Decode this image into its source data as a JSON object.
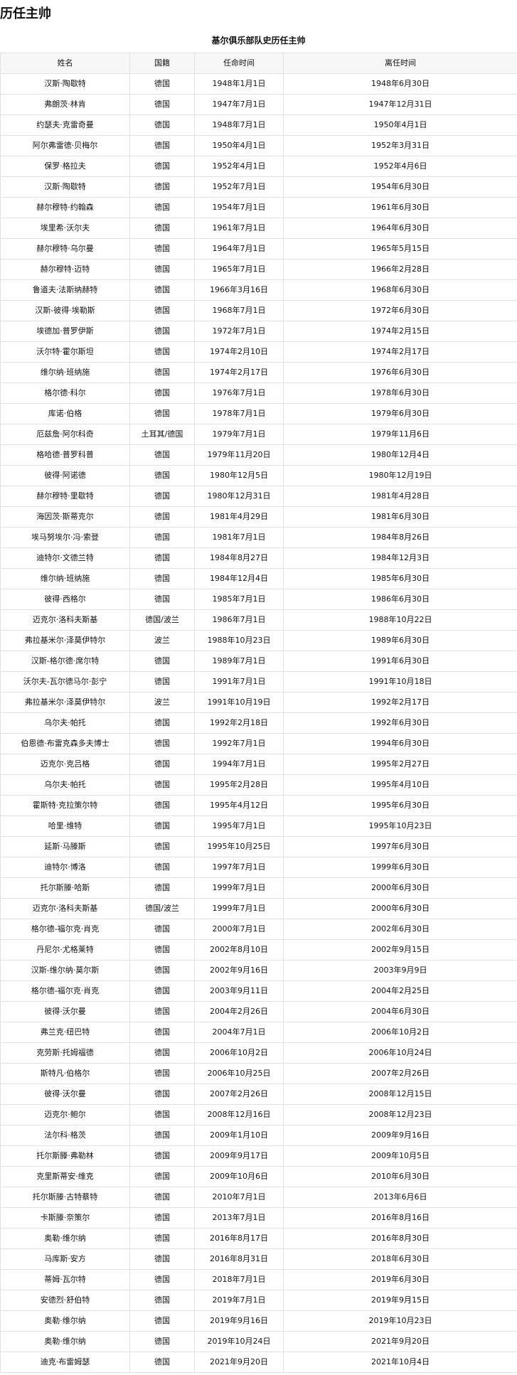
{
  "page_title": "历任主帅",
  "table": {
    "caption": "基尔俱乐部队史历任主帅",
    "headers": [
      "姓名",
      "国籍",
      "任命时间",
      "离任时间"
    ],
    "rows": [
      [
        "汉斯·陶歇特",
        "德国",
        "1948年1月1日",
        "1948年6月30日"
      ],
      [
        "弗朗茨·林肯",
        "德国",
        "1947年7月1日",
        "1947年12月31日"
      ],
      [
        "约瑟夫·克雷奇曼",
        "德国",
        "1948年7月1日",
        "1950年4月1日"
      ],
      [
        "阿尔弗雷德·贝梅尔",
        "德国",
        "1950年4月1日",
        "1952年3月31日"
      ],
      [
        "保罗·格拉夫",
        "德国",
        "1952年4月1日",
        "1952年4月6日"
      ],
      [
        "汉斯·陶歇特",
        "德国",
        "1952年7月1日",
        "1954年6月30日"
      ],
      [
        "赫尔穆特·约翰森",
        "德国",
        "1954年7月1日",
        "1961年6月30日"
      ],
      [
        "埃里希·沃尔夫",
        "德国",
        "1961年7月1日",
        "1964年6月30日"
      ],
      [
        "赫尔穆特·乌尔曼",
        "德国",
        "1964年7月1日",
        "1965年5月15日"
      ],
      [
        "赫尔穆特·迈特",
        "德国",
        "1965年7月1日",
        "1966年2月28日"
      ],
      [
        "鲁道夫·法斯纳赫特",
        "德国",
        "1966年3月16日",
        "1968年6月30日"
      ],
      [
        "汉斯-彼得·埃勒斯",
        "德国",
        "1968年7月1日",
        "1972年6月30日"
      ],
      [
        "埃德加·普罗伊斯",
        "德国",
        "1972年7月1日",
        "1974年2月15日"
      ],
      [
        "沃尔特·霍尔斯坦",
        "德国",
        "1974年2月10日",
        "1974年2月17日"
      ],
      [
        "维尔纳·班纳施",
        "德国",
        "1974年2月17日",
        "1976年6月30日"
      ],
      [
        "格尔德·科尔",
        "德国",
        "1976年7月1日",
        "1978年6月30日"
      ],
      [
        "库诺·伯格",
        "德国",
        "1978年7月1日",
        "1979年6月30日"
      ],
      [
        "厄兹詹·阿尔科奇",
        "土耳其/德国",
        "1979年7月1日",
        "1979年11月6日"
      ],
      [
        "格哈德·普罗科普",
        "德国",
        "1979年11月20日",
        "1980年12月4日"
      ],
      [
        "彼得·阿诺德",
        "德国",
        "1980年12月5日",
        "1980年12月19日"
      ],
      [
        "赫尔穆特·里歇特",
        "德国",
        "1980年12月31日",
        "1981年4月28日"
      ],
      [
        "海因茨·斯蒂克尔",
        "德国",
        "1981年4月29日",
        "1981年6月30日"
      ],
      [
        "埃马努埃尔·冯·索登",
        "德国",
        "1981年7月1日",
        "1984年8月26日"
      ],
      [
        "迪特尔·文德兰特",
        "德国",
        "1984年8月27日",
        "1984年12月3日"
      ],
      [
        "维尔纳·班纳施",
        "德国",
        "1984年12月4日",
        "1985年6月30日"
      ],
      [
        "彼得·西格尔",
        "德国",
        "1985年7月1日",
        "1986年6月30日"
      ],
      [
        "迈克尔·洛科夫斯基",
        "德国/波兰",
        "1986年7月1日",
        "1988年10月22日"
      ],
      [
        "弗拉基米尔·泽莫伊特尔",
        "波兰",
        "1988年10月23日",
        "1989年6月30日"
      ],
      [
        "汉斯-格尔德·席尔特",
        "德国",
        "1989年7月1日",
        "1991年6月30日"
      ],
      [
        "沃尔夫-瓦尔德马尔·彭宁",
        "德国",
        "1991年7月1日",
        "1991年10月18日"
      ],
      [
        "弗拉基米尔·泽莫伊特尔",
        "波兰",
        "1991年10月19日",
        "1992年2月17日"
      ],
      [
        "乌尔夫·帕托",
        "德国",
        "1992年2月18日",
        "1992年6月30日"
      ],
      [
        "伯恩德·布雷克森多夫博士",
        "德国",
        "1992年7月1日",
        "1994年6月30日"
      ],
      [
        "迈克尔·克吕格",
        "德国",
        "1994年7月1日",
        "1995年2月27日"
      ],
      [
        "乌尔夫·帕托",
        "德国",
        "1995年2月28日",
        "1995年4月10日"
      ],
      [
        "霍斯特·克拉策尔特",
        "德国",
        "1995年4月12日",
        "1995年6月30日"
      ],
      [
        "哈里·维特",
        "德国",
        "1995年7月1日",
        "1995年10月23日"
      ],
      [
        "延斯·马滕斯",
        "德国",
        "1995年10月25日",
        "1997年6月30日"
      ],
      [
        "迪特尔·博洛",
        "德国",
        "1997年7月1日",
        "1999年6月30日"
      ],
      [
        "托尔斯滕·哈斯",
        "德国",
        "1999年7月1日",
        "2000年6月30日"
      ],
      [
        "迈克尔·洛科夫斯基",
        "德国/波兰",
        "1999年7月1日",
        "2000年6月30日"
      ],
      [
        "格尔德-福尔克·肖克",
        "德国",
        "2000年7月1日",
        "2002年6月30日"
      ],
      [
        "丹尼尔·尤格莱特",
        "德国",
        "2002年8月10日",
        "2002年9月15日"
      ],
      [
        "汉斯-维尔纳·莫尔斯",
        "德国",
        "2002年9月16日",
        "2003年9月9日"
      ],
      [
        "格尔德-福尔克·肖克",
        "德国",
        "2003年9月11日",
        "2004年2月25日"
      ],
      [
        "彼得·沃尔曼",
        "德国",
        "2004年2月26日",
        "2004年6月30日"
      ],
      [
        "弗兰克·纽巴特",
        "德国",
        "2004年7月1日",
        "2006年10月2日"
      ],
      [
        "克劳斯·托姆福德",
        "德国",
        "2006年10月2日",
        "2006年10月24日"
      ],
      [
        "斯特凡·伯格尔",
        "德国",
        "2006年10月25日",
        "2007年2月26日"
      ],
      [
        "彼得·沃尔曼",
        "德国",
        "2007年2月26日",
        "2008年12月15日"
      ],
      [
        "迈克尔·鲍尔",
        "德国",
        "2008年12月16日",
        "2008年12月23日"
      ],
      [
        "法尔科·格茨",
        "德国",
        "2009年1月10日",
        "2009年9月16日"
      ],
      [
        "托尔斯滕·弗勒林",
        "德国",
        "2009年9月17日",
        "2009年10月5日"
      ],
      [
        "克里斯蒂安·维克",
        "德国",
        "2009年10月6日",
        "2010年6月30日"
      ],
      [
        "托尔斯滕·古特蔡特",
        "德国",
        "2010年7月1日",
        "2013年6月6日"
      ],
      [
        "卡斯滕·奈策尔",
        "德国",
        "2013年7月1日",
        "2016年8月16日"
      ],
      [
        "奥勒·维尔纳",
        "德国",
        "2016年8月17日",
        "2016年8月30日"
      ],
      [
        "马库斯·安方",
        "德国",
        "2016年8月31日",
        "2018年6月30日"
      ],
      [
        "蒂姆·瓦尔特",
        "德国",
        "2018年7月1日",
        "2019年6月30日"
      ],
      [
        "安德烈·舒伯特",
        "德国",
        "2019年7月1日",
        "2019年9月15日"
      ],
      [
        "奥勒·维尔纳",
        "德国",
        "2019年9月16日",
        "2019年10月23日"
      ],
      [
        "奥勒·维尔纳",
        "德国",
        "2019年10月24日",
        "2021年9月20日"
      ],
      [
        "迪克·布雷姆瑟",
        "德国",
        "2021年9月20日",
        "2021年10月4日"
      ]
    ]
  }
}
